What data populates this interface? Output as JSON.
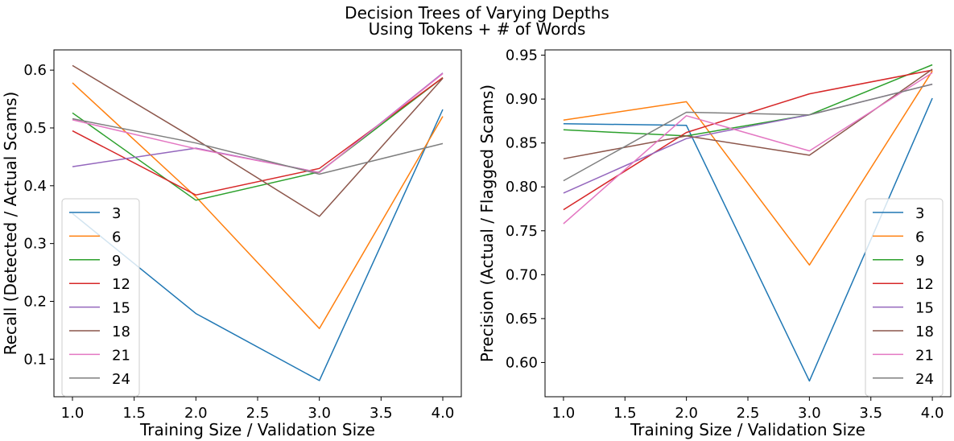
{
  "figure": {
    "title_line1": "Decision Trees of Varying Depths",
    "title_line2": "Using Tokens + # of Words"
  },
  "series_colors": [
    "#1f77b4",
    "#ff7f0e",
    "#2ca02c",
    "#d62728",
    "#9467bd",
    "#8c564b",
    "#e377c2",
    "#7f7f7f"
  ],
  "chart_data": [
    {
      "type": "line",
      "xlabel": "Training Size / Validation Size",
      "ylabel": "Recall (Detected / Actual Scams)",
      "xlim": [
        0.85,
        4.15
      ],
      "ylim": [
        0.035,
        0.635
      ],
      "xticks": [
        1.0,
        1.5,
        2.0,
        2.5,
        3.0,
        3.5,
        4.0
      ],
      "xtick_labels": [
        "1.0",
        "1.5",
        "2.0",
        "2.5",
        "3.0",
        "3.5",
        "4.0"
      ],
      "yticks": [
        0.1,
        0.2,
        0.3,
        0.4,
        0.5,
        0.6
      ],
      "ytick_labels": [
        "0.1",
        "0.2",
        "0.3",
        "0.4",
        "0.5",
        "0.6"
      ],
      "legend_position": "lower-left",
      "grid": false,
      "x": [
        1,
        2,
        3,
        4
      ],
      "series": [
        {
          "name": "3",
          "values": [
            0.352,
            0.179,
            0.063,
            0.532
          ]
        },
        {
          "name": "6",
          "values": [
            0.578,
            0.381,
            0.153,
            0.52
          ]
        },
        {
          "name": "9",
          "values": [
            0.526,
            0.375,
            0.424,
            0.587
          ]
        },
        {
          "name": "12",
          "values": [
            0.495,
            0.384,
            0.43,
            0.587
          ]
        },
        {
          "name": "15",
          "values": [
            0.433,
            0.465,
            0.423,
            0.595
          ]
        },
        {
          "name": "18",
          "values": [
            0.608,
            0.48,
            0.347,
            0.586
          ]
        },
        {
          "name": "21",
          "values": [
            0.514,
            0.464,
            0.423,
            0.594
          ]
        },
        {
          "name": "24",
          "values": [
            0.516,
            0.474,
            0.42,
            0.473
          ]
        }
      ]
    },
    {
      "type": "line",
      "xlabel": "Training Size / Validation Size",
      "ylabel": "Precision (Actual / Flagged Scams)",
      "xlim": [
        0.85,
        4.15
      ],
      "ylim": [
        0.561,
        0.956
      ],
      "xticks": [
        1.0,
        1.5,
        2.0,
        2.5,
        3.0,
        3.5,
        4.0
      ],
      "xtick_labels": [
        "1.0",
        "1.5",
        "2.0",
        "2.5",
        "3.0",
        "3.5",
        "4.0"
      ],
      "yticks": [
        0.6,
        0.65,
        0.7,
        0.75,
        0.8,
        0.85,
        0.9,
        0.95
      ],
      "ytick_labels": [
        "0.60",
        "0.65",
        "0.70",
        "0.75",
        "0.80",
        "0.85",
        "0.90",
        "0.95"
      ],
      "legend_position": "lower-right",
      "grid": false,
      "x": [
        1,
        2,
        3,
        4
      ],
      "series": [
        {
          "name": "3",
          "values": [
            0.872,
            0.87,
            0.579,
            0.901
          ]
        },
        {
          "name": "6",
          "values": [
            0.876,
            0.897,
            0.711,
            0.932
          ]
        },
        {
          "name": "9",
          "values": [
            0.865,
            0.858,
            0.882,
            0.939
          ]
        },
        {
          "name": "12",
          "values": [
            0.774,
            0.862,
            0.906,
            0.933
          ]
        },
        {
          "name": "15",
          "values": [
            0.793,
            0.855,
            0.882,
            0.917
          ]
        },
        {
          "name": "18",
          "values": [
            0.832,
            0.858,
            0.836,
            0.934
          ]
        },
        {
          "name": "21",
          "values": [
            0.758,
            0.881,
            0.841,
            0.93
          ]
        },
        {
          "name": "24",
          "values": [
            0.807,
            0.885,
            0.882,
            0.917
          ]
        }
      ]
    }
  ]
}
